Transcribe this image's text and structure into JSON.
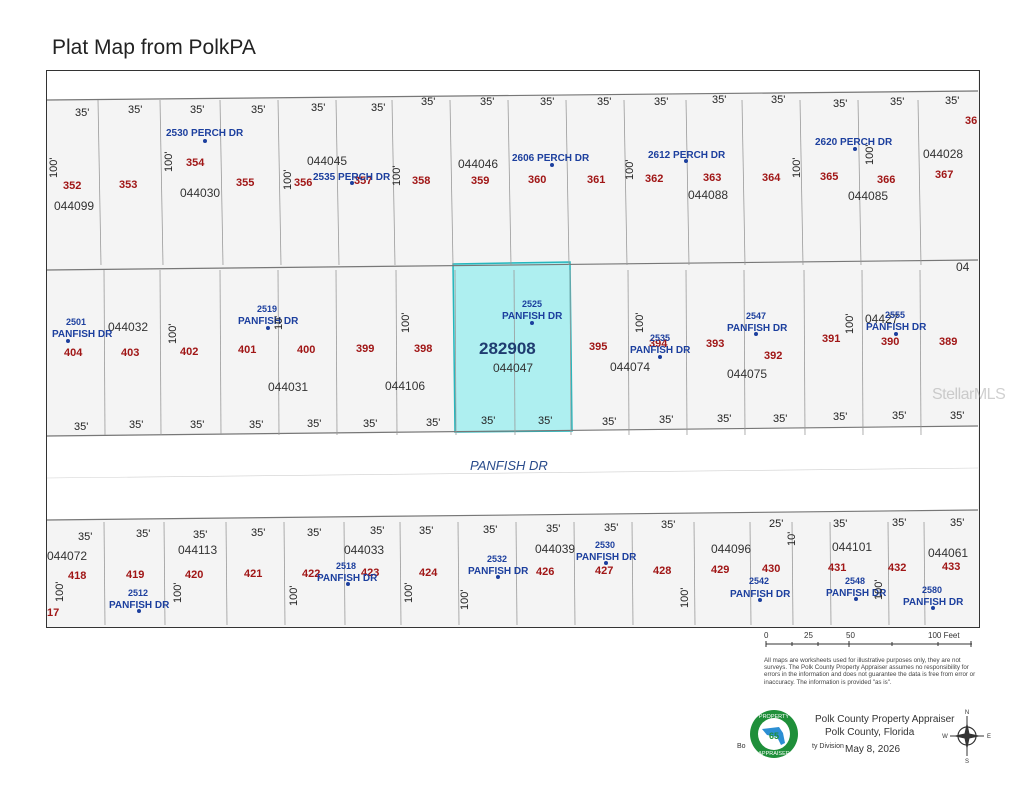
{
  "title": "Plat Map from PolkPA",
  "colors": {
    "lot_number": "#a01616",
    "address": "#1c3f9e",
    "parcel_id": "#333333",
    "dimension": "#222222",
    "street_label": "#2a4c8c",
    "highlight_fill": "#aeeff0",
    "highlight_stroke": "#25b7bd"
  },
  "map": {
    "highlighted_parcel": "282908",
    "street": "PANFISH DR",
    "top_dims": [
      "35'",
      "35'",
      "35'",
      "35'",
      "35'",
      "35'",
      "35'",
      "35'",
      "35'",
      "35'",
      "35'",
      "35'",
      "35'",
      "35'",
      "35'",
      "35'"
    ],
    "depth_label": "100'",
    "top_lots": [
      "352",
      "353",
      "354",
      "355",
      "356",
      "357",
      "358",
      "359",
      "360",
      "361",
      "362",
      "363",
      "364",
      "365",
      "366",
      "367",
      "36"
    ],
    "top_parcels": [
      "044099",
      "044030",
      "044045",
      "044046",
      "044088",
      "044085",
      "044028"
    ],
    "top_addresses": [
      "2530 PERCH DR",
      "2535 PERCH DR",
      "2606 PERCH DR",
      "2612 PERCH DR",
      "2620 PERCH DR"
    ],
    "middle_lots": [
      "404",
      "403",
      "402",
      "401",
      "400",
      "399",
      "398",
      "395",
      "394",
      "393",
      "392",
      "391",
      "390",
      "389"
    ],
    "middle_parcels": [
      "044032",
      "044031",
      "044106",
      "044047",
      "044074",
      "044075",
      "04427",
      "04"
    ],
    "middle_addresses": [
      {
        "num": "2501",
        "street": "PANFISH DR"
      },
      {
        "num": "2519",
        "street": "PANFISH DR"
      },
      {
        "num": "2525",
        "street": "PANFISH DR"
      },
      {
        "num": "2535",
        "street": "PANFISH DR"
      },
      {
        "num": "2547",
        "street": "PANFISH DR"
      },
      {
        "num": "2555",
        "street": "PANFISH DR"
      }
    ],
    "middle_dims": [
      "35'",
      "35'",
      "35'",
      "35'",
      "35'",
      "35'",
      "35'",
      "35'",
      "35'",
      "35'",
      "35'",
      "35'",
      "35'",
      "35'",
      "35'",
      "35'"
    ],
    "bottom_dims": [
      "35'",
      "35'",
      "35'",
      "35'",
      "35'",
      "35'",
      "35'",
      "35'",
      "35'",
      "35'",
      "35'",
      "25'",
      "35'",
      "35'",
      "35'"
    ],
    "bottom_lots": [
      "418",
      "419",
      "420",
      "421",
      "422",
      "423",
      "424",
      "426",
      "427",
      "428",
      "429",
      "430",
      "431",
      "432",
      "433",
      "17"
    ],
    "bottom_parcels": [
      "044072",
      "044113",
      "044033",
      "044039",
      "044096",
      "044101",
      "044061"
    ],
    "bottom_addresses": [
      {
        "num": "2512",
        "street": "PANFISH DR"
      },
      {
        "num": "2518",
        "street": "PANFISH DR"
      },
      {
        "num": "2532",
        "street": "PANFISH DR"
      },
      {
        "num": "2530",
        "street": "PANFISH DR"
      },
      {
        "num": "2542",
        "street": "PANFISH DR"
      },
      {
        "num": "2548",
        "street": "PANFISH DR"
      },
      {
        "num": "2580",
        "street": "PANFISH DR"
      }
    ],
    "side_dim_10": "10'"
  },
  "scale": {
    "ticks": [
      "0",
      "25",
      "50",
      "100 Feet"
    ]
  },
  "disclaimer": "All maps are worksheets used for illustrative purposes only, they are not surveys. The Polk County Property Appraiser assumes no responsibility for errors in the information and does not guarantee the data is free from error or inaccuracy. The information is provided \"as is\".",
  "appraiser": {
    "name": "Polk County Property Appraiser",
    "county": "Polk County, Florida",
    "date": "May 8, 2026",
    "frag_left": "Bo",
    "frag_right": "ty Division"
  },
  "seal_text": {
    "top": "PROPERTY",
    "bottom": "APPRAISER",
    "center": "65"
  },
  "compass": {
    "n": "N",
    "s": "S",
    "e": "E",
    "w": "W"
  },
  "watermark": "StellarMLS"
}
